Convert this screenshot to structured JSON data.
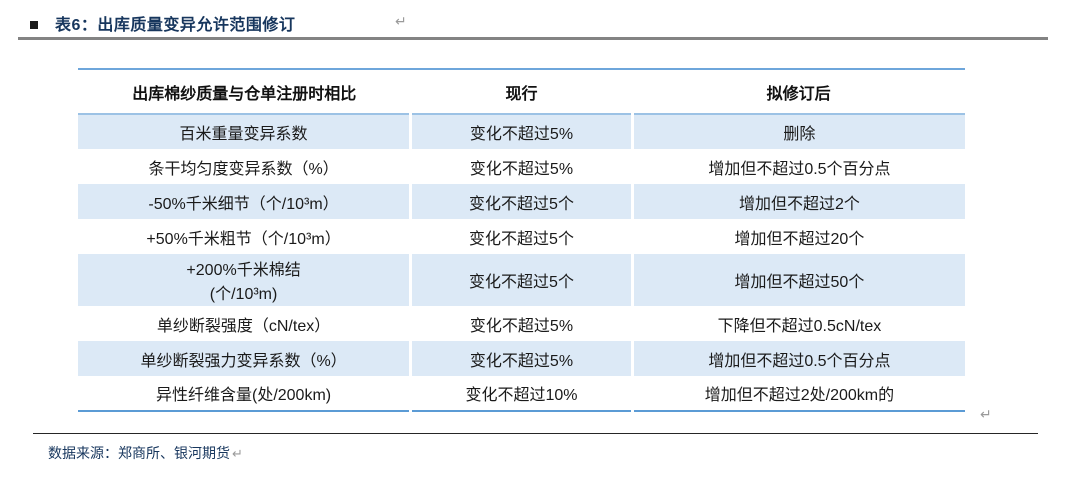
{
  "title": {
    "text": "表6：出库质量变异允许范围修订",
    "pilcrow": "↵"
  },
  "table": {
    "headers": {
      "item": "出库棉纱质量与仓单注册时相比",
      "current": "现行",
      "revised": "拟修订后"
    },
    "rows": [
      {
        "item": "百米重量变异系数",
        "current": "变化不超过5%",
        "revised": "删除"
      },
      {
        "item": "条干均匀度变异系数（%）",
        "current": "变化不超过5%",
        "revised": "增加但不超过0.5个百分点"
      },
      {
        "item": "-50%千米细节（个/10³m）",
        "current": "变化不超过5个",
        "revised": "增加但不超过2个"
      },
      {
        "item": "+50%千米粗节（个/10³m）",
        "current": "变化不超过5个",
        "revised": "增加但不超过20个"
      },
      {
        "item": "+200%千米棉结\n(个/10³m)",
        "current": "变化不超过5个",
        "revised": "增加但不超过50个"
      },
      {
        "item": "单纱断裂强度（cN/tex）",
        "current": "变化不超过5%",
        "revised": "下降但不超过0.5cN/tex"
      },
      {
        "item": "单纱断裂强力变异系数（%）",
        "current": "变化不超过5%",
        "revised": "增加但不超过0.5个百分点"
      },
      {
        "item": "异性纤维含量(处/200km)",
        "current": "变化不超过10%",
        "revised": "增加但不超过2处/200km的"
      }
    ],
    "end_pilcrow": "↵"
  },
  "footer": {
    "source": "数据来源：郑商所、银河期货",
    "pilcrow": "↵"
  },
  "colors": {
    "title_navy": "#17365D",
    "row_alt_blue": "#DCE9F6",
    "table_border_blue": "#5B9BD5",
    "header_divider_blue": "#9CC2E5",
    "title_rule_gray": "#838383",
    "footer_rule_dark": "#262626"
  }
}
